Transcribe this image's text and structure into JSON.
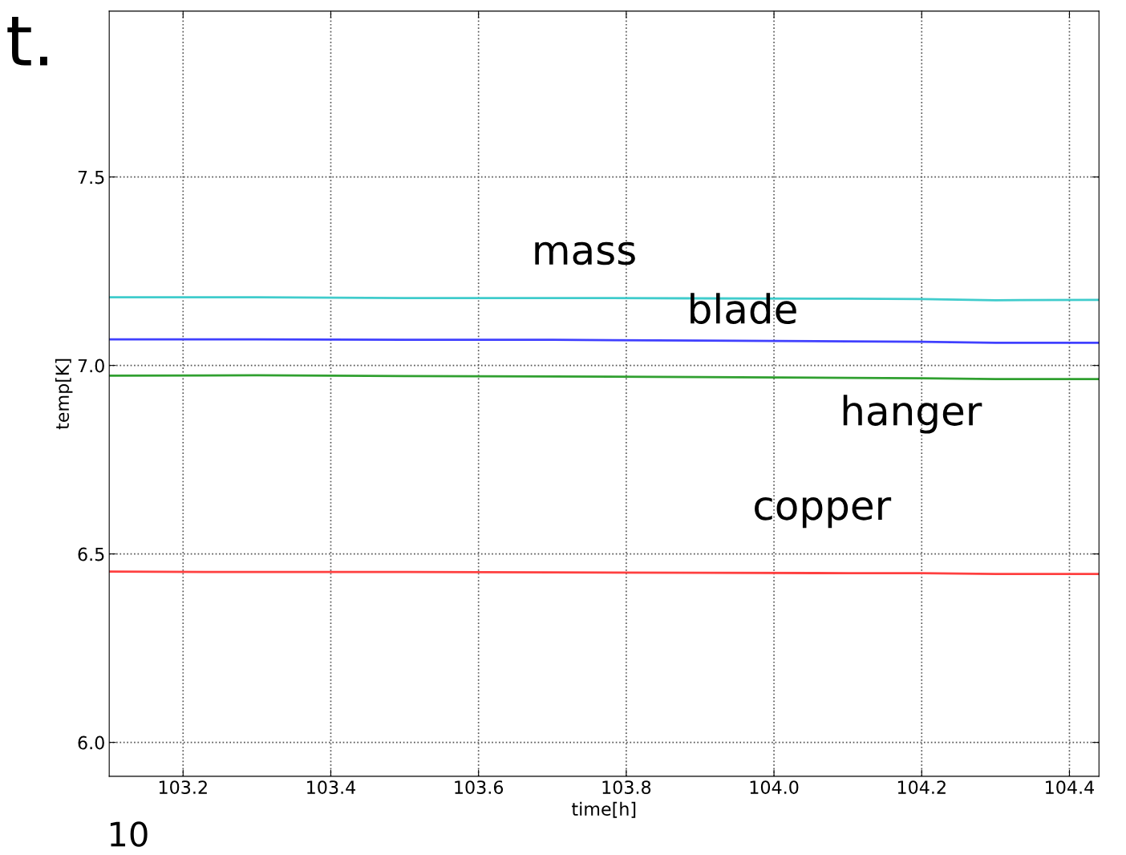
{
  "chart_data": {
    "type": "line",
    "xlabel": "time[h]",
    "ylabel": "temp[K]",
    "x": [
      103.1,
      103.3,
      103.5,
      103.7,
      103.9,
      104.1,
      104.2,
      104.3,
      104.44
    ],
    "series": [
      {
        "name": "mass",
        "color": "#40cccc",
        "values": [
          7.181,
          7.181,
          7.179,
          7.179,
          7.178,
          7.177,
          7.176,
          7.173,
          7.174
        ]
      },
      {
        "name": "blade",
        "color": "#4040ff",
        "values": [
          7.069,
          7.069,
          7.068,
          7.068,
          7.066,
          7.064,
          7.063,
          7.06,
          7.06
        ]
      },
      {
        "name": "hanger",
        "color": "#30a030",
        "values": [
          6.973,
          6.974,
          6.972,
          6.971,
          6.969,
          6.967,
          6.966,
          6.964,
          6.964
        ]
      },
      {
        "name": "copper",
        "color": "#ff4040",
        "values": [
          6.453,
          6.452,
          6.452,
          6.451,
          6.45,
          6.449,
          6.449,
          6.447,
          6.447
        ]
      }
    ],
    "annotations": [
      "t.",
      "10"
    ],
    "xlim": [
      103.1,
      104.44
    ],
    "ylim": [
      5.91,
      7.94
    ],
    "xticks": [
      103.2,
      103.4,
      103.6,
      103.8,
      {
        "value": 104.0,
        "label": "104.0"
      },
      104.2,
      104.4
    ],
    "yticks": [
      {
        "value": 6.0,
        "label": "6.0"
      },
      6.5,
      {
        "value": 7.0,
        "label": "7.0"
      },
      7.5
    ],
    "grid": true,
    "line_style": "solid",
    "marker": "none"
  }
}
